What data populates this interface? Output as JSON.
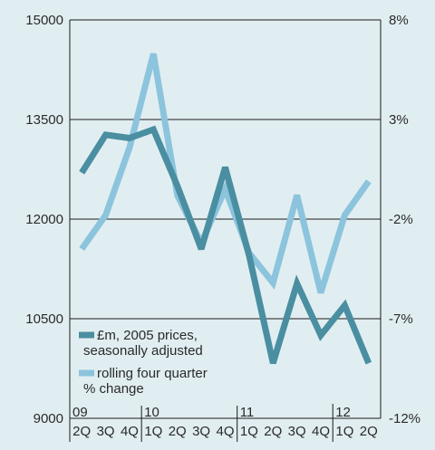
{
  "chart_data": {
    "type": "line",
    "title": "",
    "xlabel": "",
    "ylabel": "",
    "categories": [
      "2Q",
      "3Q",
      "4Q",
      "1Q",
      "2Q",
      "3Q",
      "4Q",
      "1Q",
      "2Q",
      "3Q",
      "4Q",
      "1Q",
      "2Q"
    ],
    "year_markers": [
      {
        "label": "09",
        "index": 0
      },
      {
        "label": "10",
        "index": 3
      },
      {
        "label": "11",
        "index": 7
      },
      {
        "label": "12",
        "index": 11
      }
    ],
    "left_axis": {
      "ylim": [
        9000,
        15000
      ],
      "ticks": [
        9000,
        10500,
        12000,
        13500,
        15000
      ]
    },
    "right_axis": {
      "ylim": [
        -12,
        8
      ],
      "ticks": [
        "-12%",
        "-7%",
        "-2%",
        "3%",
        "8%"
      ],
      "tick_values": [
        -12,
        -7,
        -2,
        3,
        8
      ]
    },
    "grid": "horizontal",
    "legend_position": "bottom-left",
    "series": [
      {
        "name": "£m, 2005 prices, seasonally adjusted",
        "axis": "left",
        "color": "#4a8ea1",
        "values": [
          12700,
          13270,
          13220,
          13350,
          12500,
          11550,
          12780,
          11450,
          9830,
          11030,
          10250,
          10700,
          9830
        ]
      },
      {
        "name": "rolling four quarter % change",
        "axis": "right",
        "color": "#8cc4dd",
        "values": [
          -3.5,
          -1.8,
          1.6,
          6.3,
          -0.8,
          -3.2,
          -0.5,
          -3.7,
          -5.2,
          -0.8,
          -5.7,
          -1.8,
          -0.1
        ]
      }
    ]
  }
}
